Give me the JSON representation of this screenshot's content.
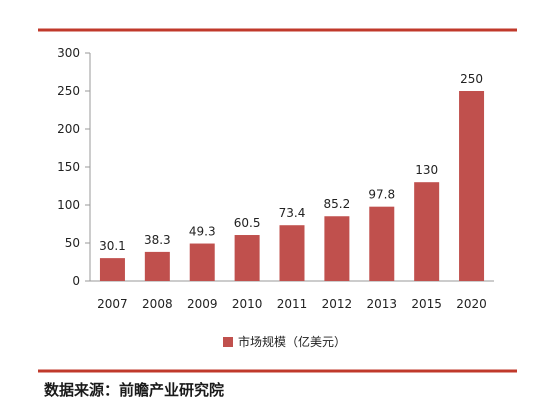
{
  "chart_data": {
    "type": "bar",
    "categories": [
      "2007",
      "2008",
      "2009",
      "2010",
      "2011",
      "2012",
      "2013",
      "2015",
      "2020"
    ],
    "series": [
      {
        "name": "市场规模（亿美元）",
        "values": [
          30.1,
          38.3,
          49.3,
          60.5,
          73.4,
          85.2,
          97.8,
          130,
          250
        ],
        "labels": [
          "30.1",
          "38.3",
          "49.3",
          "60.5",
          "73.4",
          "85.2",
          "97.8",
          "130",
          "250"
        ],
        "color": "#c0504d"
      }
    ],
    "ylim": [
      0,
      300
    ],
    "yticks": [
      0,
      50,
      100,
      150,
      200,
      250,
      300
    ],
    "grid": false,
    "legend_position": "bottom-left"
  },
  "footer": {
    "source": "数据来源：前瞻产业研究院"
  },
  "colors": {
    "top_rule": "#c0392b",
    "bottom_rule": "#c0392b",
    "axis": "#9a9a9a"
  }
}
